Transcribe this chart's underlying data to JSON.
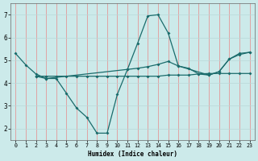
{
  "xlabel": "Humidex (Indice chaleur)",
  "xlim": [
    -0.5,
    23.5
  ],
  "ylim": [
    1.5,
    7.5
  ],
  "yticks": [
    2,
    3,
    4,
    5,
    6,
    7
  ],
  "xticks": [
    0,
    1,
    2,
    3,
    4,
    5,
    6,
    7,
    8,
    9,
    10,
    11,
    12,
    13,
    14,
    15,
    16,
    17,
    18,
    19,
    20,
    21,
    22,
    23
  ],
  "bg_color": "#cceaea",
  "line_color": "#1a6b6b",
  "grid_color_v": "#e88888",
  "grid_color_h": "#b8d8d8",
  "line1_x": [
    0,
    1,
    2,
    3,
    4,
    5,
    6,
    7,
    8,
    9,
    10,
    11,
    12,
    13,
    14,
    15,
    16,
    17,
    18,
    19,
    20,
    21,
    22,
    23
  ],
  "line1_y": [
    5.3,
    4.8,
    4.4,
    4.2,
    4.2,
    3.55,
    2.9,
    2.5,
    1.8,
    1.8,
    3.5,
    4.6,
    5.75,
    6.95,
    7.0,
    6.2,
    4.75,
    4.65,
    4.4,
    4.35,
    4.5,
    5.05,
    5.3,
    5.35
  ],
  "line2_x": [
    2,
    3,
    4,
    5,
    6,
    7,
    8,
    9,
    10,
    11,
    12,
    13,
    14,
    15,
    16,
    17,
    18,
    19,
    20,
    21,
    22,
    23
  ],
  "line2_y": [
    4.3,
    4.3,
    4.3,
    4.3,
    4.3,
    4.3,
    4.3,
    4.3,
    4.3,
    4.3,
    4.3,
    4.3,
    4.3,
    4.35,
    4.35,
    4.35,
    4.4,
    4.42,
    4.42,
    4.42,
    4.42,
    4.42
  ],
  "line3_x": [
    2,
    3,
    11,
    12,
    13,
    14,
    15,
    16,
    19,
    20,
    21,
    22,
    23
  ],
  "line3_y": [
    4.3,
    4.2,
    4.6,
    4.65,
    4.72,
    4.82,
    4.95,
    4.75,
    4.35,
    4.5,
    5.05,
    5.25,
    5.35
  ]
}
